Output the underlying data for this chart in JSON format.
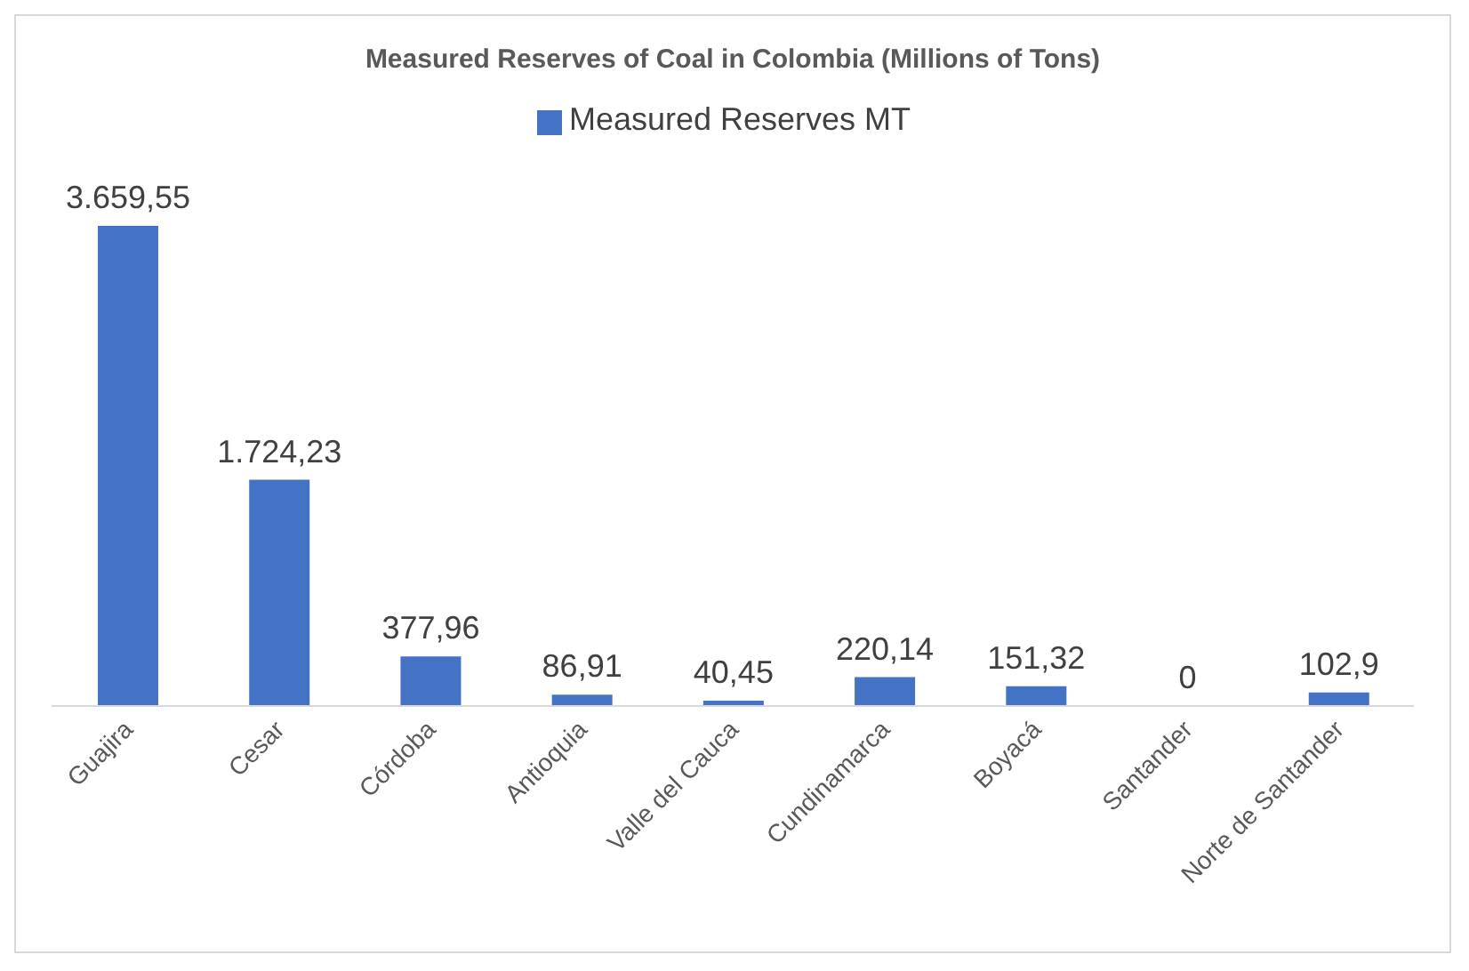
{
  "chart_data": {
    "type": "bar",
    "title": "Measured Reserves of Coal in Colombia (Millions of Tons)",
    "categories": [
      "Guajira",
      "Cesar",
      "Córdoba",
      "Antioquia",
      "Valle del Cauca",
      "Cundinamarca",
      "Boyacá",
      "Santander",
      "Norte de Santander"
    ],
    "series": [
      {
        "name": "Measured Reserves MT",
        "color": "#4472c4",
        "values": [
          3659.55,
          1724.23,
          377.96,
          86.91,
          40.45,
          220.14,
          151.32,
          0,
          102.9
        ],
        "value_labels": [
          "3.659,55",
          "1.724,23",
          "377,96",
          "86,91",
          "40,45",
          "220,14",
          "151,32",
          "0",
          "102,9"
        ]
      }
    ],
    "legend": "top",
    "grid": false
  }
}
